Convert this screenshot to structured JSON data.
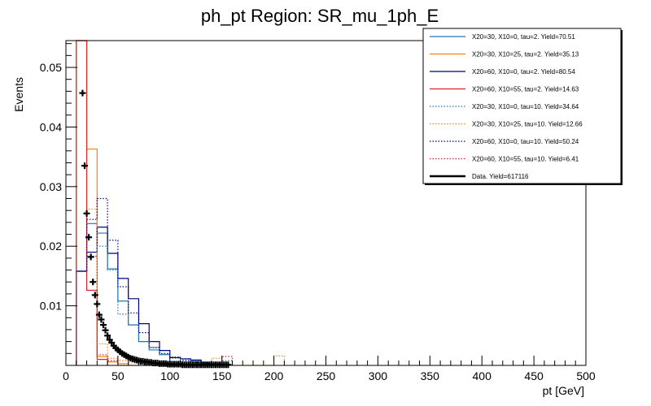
{
  "chart_data": {
    "type": "line",
    "title": "ph_pt Region: SR_mu_1ph_E",
    "xlabel": "pt [GeV]",
    "ylabel": "Events",
    "xlim": [
      0,
      500
    ],
    "ylim": [
      0,
      0.0545
    ],
    "x_ticks": [
      "0",
      "50",
      "100",
      "150",
      "200",
      "250",
      "300",
      "350",
      "400",
      "450",
      "500"
    ],
    "y_ticks": [
      "0.01",
      "0.02",
      "0.03",
      "0.04",
      "0.05"
    ],
    "y_tick_values": [
      0.01,
      0.02,
      0.03,
      0.04,
      0.05
    ],
    "grid": false,
    "legend_position": "top-right",
    "bin_width": 10,
    "bin_edges_start": 10,
    "series": [
      {
        "name": "X20=30, X10=0, tau=2. Yield=70.51",
        "color": "#1f77b4",
        "dash": false,
        "values": [
          0.0158,
          0.0238,
          0.0222,
          0.0162,
          0.0108,
          0.0068,
          0.004,
          0.0026,
          0.0018,
          0.0013,
          0.0011,
          0.0008,
          0.0005,
          0.0003
        ]
      },
      {
        "name": "X20=30, X10=25, tau=2. Yield=35.13",
        "color": "#ff7f0e",
        "dash": false,
        "values": [
          0.0545,
          0.0363,
          0.0015,
          0.0006,
          0.0003
        ]
      },
      {
        "name": "X20=60, X10=0, tau=2. Yield=80.54",
        "color": "#000080",
        "dash": false,
        "values": [
          0.0158,
          0.019,
          0.0232,
          0.0188,
          0.0146,
          0.0112,
          0.007,
          0.004,
          0.0025,
          0.0013,
          0.0011,
          0.0009,
          0.0004,
          0.0002
        ]
      },
      {
        "name": "X20=60, X10=55, tau=2. Yield=14.63",
        "color": "#d62728",
        "dash": false,
        "values": [
          0.0545,
          0.0126,
          0.001
        ]
      },
      {
        "name": "X20=30, X10=0, tau=10. Yield=34.64",
        "color": "#1f77b4",
        "dash": true,
        "values": [
          0.0158,
          0.0183,
          0.02,
          0.016,
          0.0086,
          0.0068,
          0.004,
          0.003,
          0.0019,
          0.0012,
          0.001,
          0.0007,
          0.0004,
          0.0002,
          0.0008
        ]
      },
      {
        "name": "X20=30, X10=25, tau=10. Yield=12.66",
        "color": "#ff7f0e",
        "dash": true,
        "values": [
          0.0545,
          0.0262,
          0.0036,
          0.0012,
          0.0008,
          0.0004,
          0,
          0,
          0,
          0,
          0,
          0,
          0,
          0.0012,
          0,
          0,
          0,
          0,
          0,
          0.0016
        ]
      },
      {
        "name": "X20=60, X10=0, tau=10. Yield=50.24",
        "color": "#000080",
        "dash": true,
        "values": [
          0.0158,
          0.0245,
          0.028,
          0.021,
          0.0132,
          0.0088,
          0.0055,
          0.003,
          0.002,
          0.0014,
          0.0008,
          0.0005,
          0.0003
        ]
      },
      {
        "name": "X20=60, X10=55, tau=10. Yield=6.41",
        "color": "#d62728",
        "dash": true,
        "values": [
          0.0545,
          0.0183,
          0.0018,
          0.0008,
          0,
          0,
          0,
          0,
          0,
          0,
          0,
          0,
          0,
          0,
          0.0015
        ]
      },
      {
        "name": "Data. Yield=617116",
        "color": "#000000",
        "type": "points",
        "x": [
          16,
          18,
          20,
          22,
          24,
          26,
          28,
          30,
          32,
          34,
          36,
          38,
          40,
          42,
          44,
          46,
          48,
          50,
          52,
          54,
          56,
          58,
          60,
          62,
          64,
          66,
          68,
          70,
          72,
          74,
          76,
          78,
          80,
          82,
          84,
          86,
          88,
          90,
          92,
          94,
          96,
          98,
          100,
          102,
          104,
          106,
          108,
          110,
          112,
          114,
          116,
          118,
          120,
          122,
          124,
          126,
          128,
          130,
          132,
          134,
          136,
          138,
          140,
          142,
          144,
          146,
          148,
          150,
          152,
          154,
          156
        ],
        "y": [
          0.0457,
          0.0335,
          0.0255,
          0.0215,
          0.0182,
          0.014,
          0.0118,
          0.0103,
          0.0085,
          0.0077,
          0.0068,
          0.0059,
          0.005,
          0.0043,
          0.0038,
          0.0033,
          0.0029,
          0.0026,
          0.0023,
          0.002,
          0.0018,
          0.0016,
          0.0014,
          0.0012,
          0.0011,
          0.001,
          0.0009,
          0.0008,
          0.0007,
          0.0007,
          0.0006,
          0.0006,
          0.0005,
          0.0005,
          0.0004,
          0.0004,
          0.0004,
          0.0003,
          0.0003,
          0.0003,
          0.0003,
          0.0002,
          0.0002,
          0.0002,
          0.0002,
          0.0002,
          0.0002,
          0.0002,
          0.0001,
          0.0001,
          0.0001,
          0.0001,
          0.0001,
          0.0001,
          0.0001,
          0.0001,
          0.0001,
          0.0001,
          0.0001,
          0.0001,
          0.0001,
          0.0001,
          0.0001,
          0.0001,
          0.0001,
          0.0001,
          0.0001,
          0.0001,
          0.0001,
          0.0001,
          0.0001
        ]
      }
    ]
  }
}
